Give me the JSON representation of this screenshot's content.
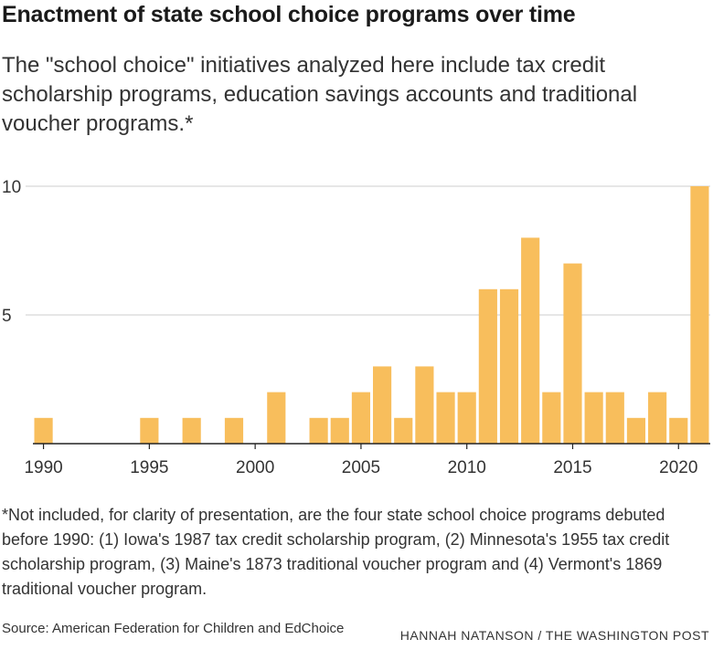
{
  "title": "Enactment of state school choice programs over time",
  "subtitle": "The \"school choice\" initiatives analyzed here include tax credit scholarship programs, education savings accounts and traditional voucher programs.*",
  "footnote": "*Not included, for clarity of presentation, are the four state school choice programs debuted before 1990: (1) Iowa's 1987 tax credit scholarship program, (2) Minnesota's 1955 tax credit scholarship program, (3) Maine's 1873 traditional voucher program and (4) Vermont's 1869 traditional voucher program.",
  "source": "Source: American Federation for Children and EdChoice",
  "credit": "HANNAH NATANSON / THE WASHINGTON POST",
  "colors": {
    "bar": "#F8BE5C",
    "grid": "#cccccc",
    "axis": "#222222",
    "text": "#333333"
  },
  "chart_data": {
    "type": "bar",
    "categories": [
      1990,
      1991,
      1992,
      1993,
      1994,
      1995,
      1996,
      1997,
      1998,
      1999,
      2000,
      2001,
      2002,
      2003,
      2004,
      2005,
      2006,
      2007,
      2008,
      2009,
      2010,
      2011,
      2012,
      2013,
      2014,
      2015,
      2016,
      2017,
      2018,
      2019,
      2020,
      2021
    ],
    "values": [
      1,
      0,
      0,
      0,
      0,
      1,
      0,
      1,
      0,
      1,
      0,
      2,
      0,
      1,
      1,
      2,
      3,
      1,
      3,
      2,
      2,
      6,
      6,
      8,
      2,
      7,
      2,
      2,
      1,
      2,
      1,
      10
    ],
    "x_ticks": [
      1990,
      1995,
      2000,
      2005,
      2010,
      2015,
      2020
    ],
    "y_ticks": [
      5,
      10
    ],
    "ylim": [
      0,
      10
    ],
    "grid": true,
    "xlabel": "",
    "ylabel": ""
  }
}
